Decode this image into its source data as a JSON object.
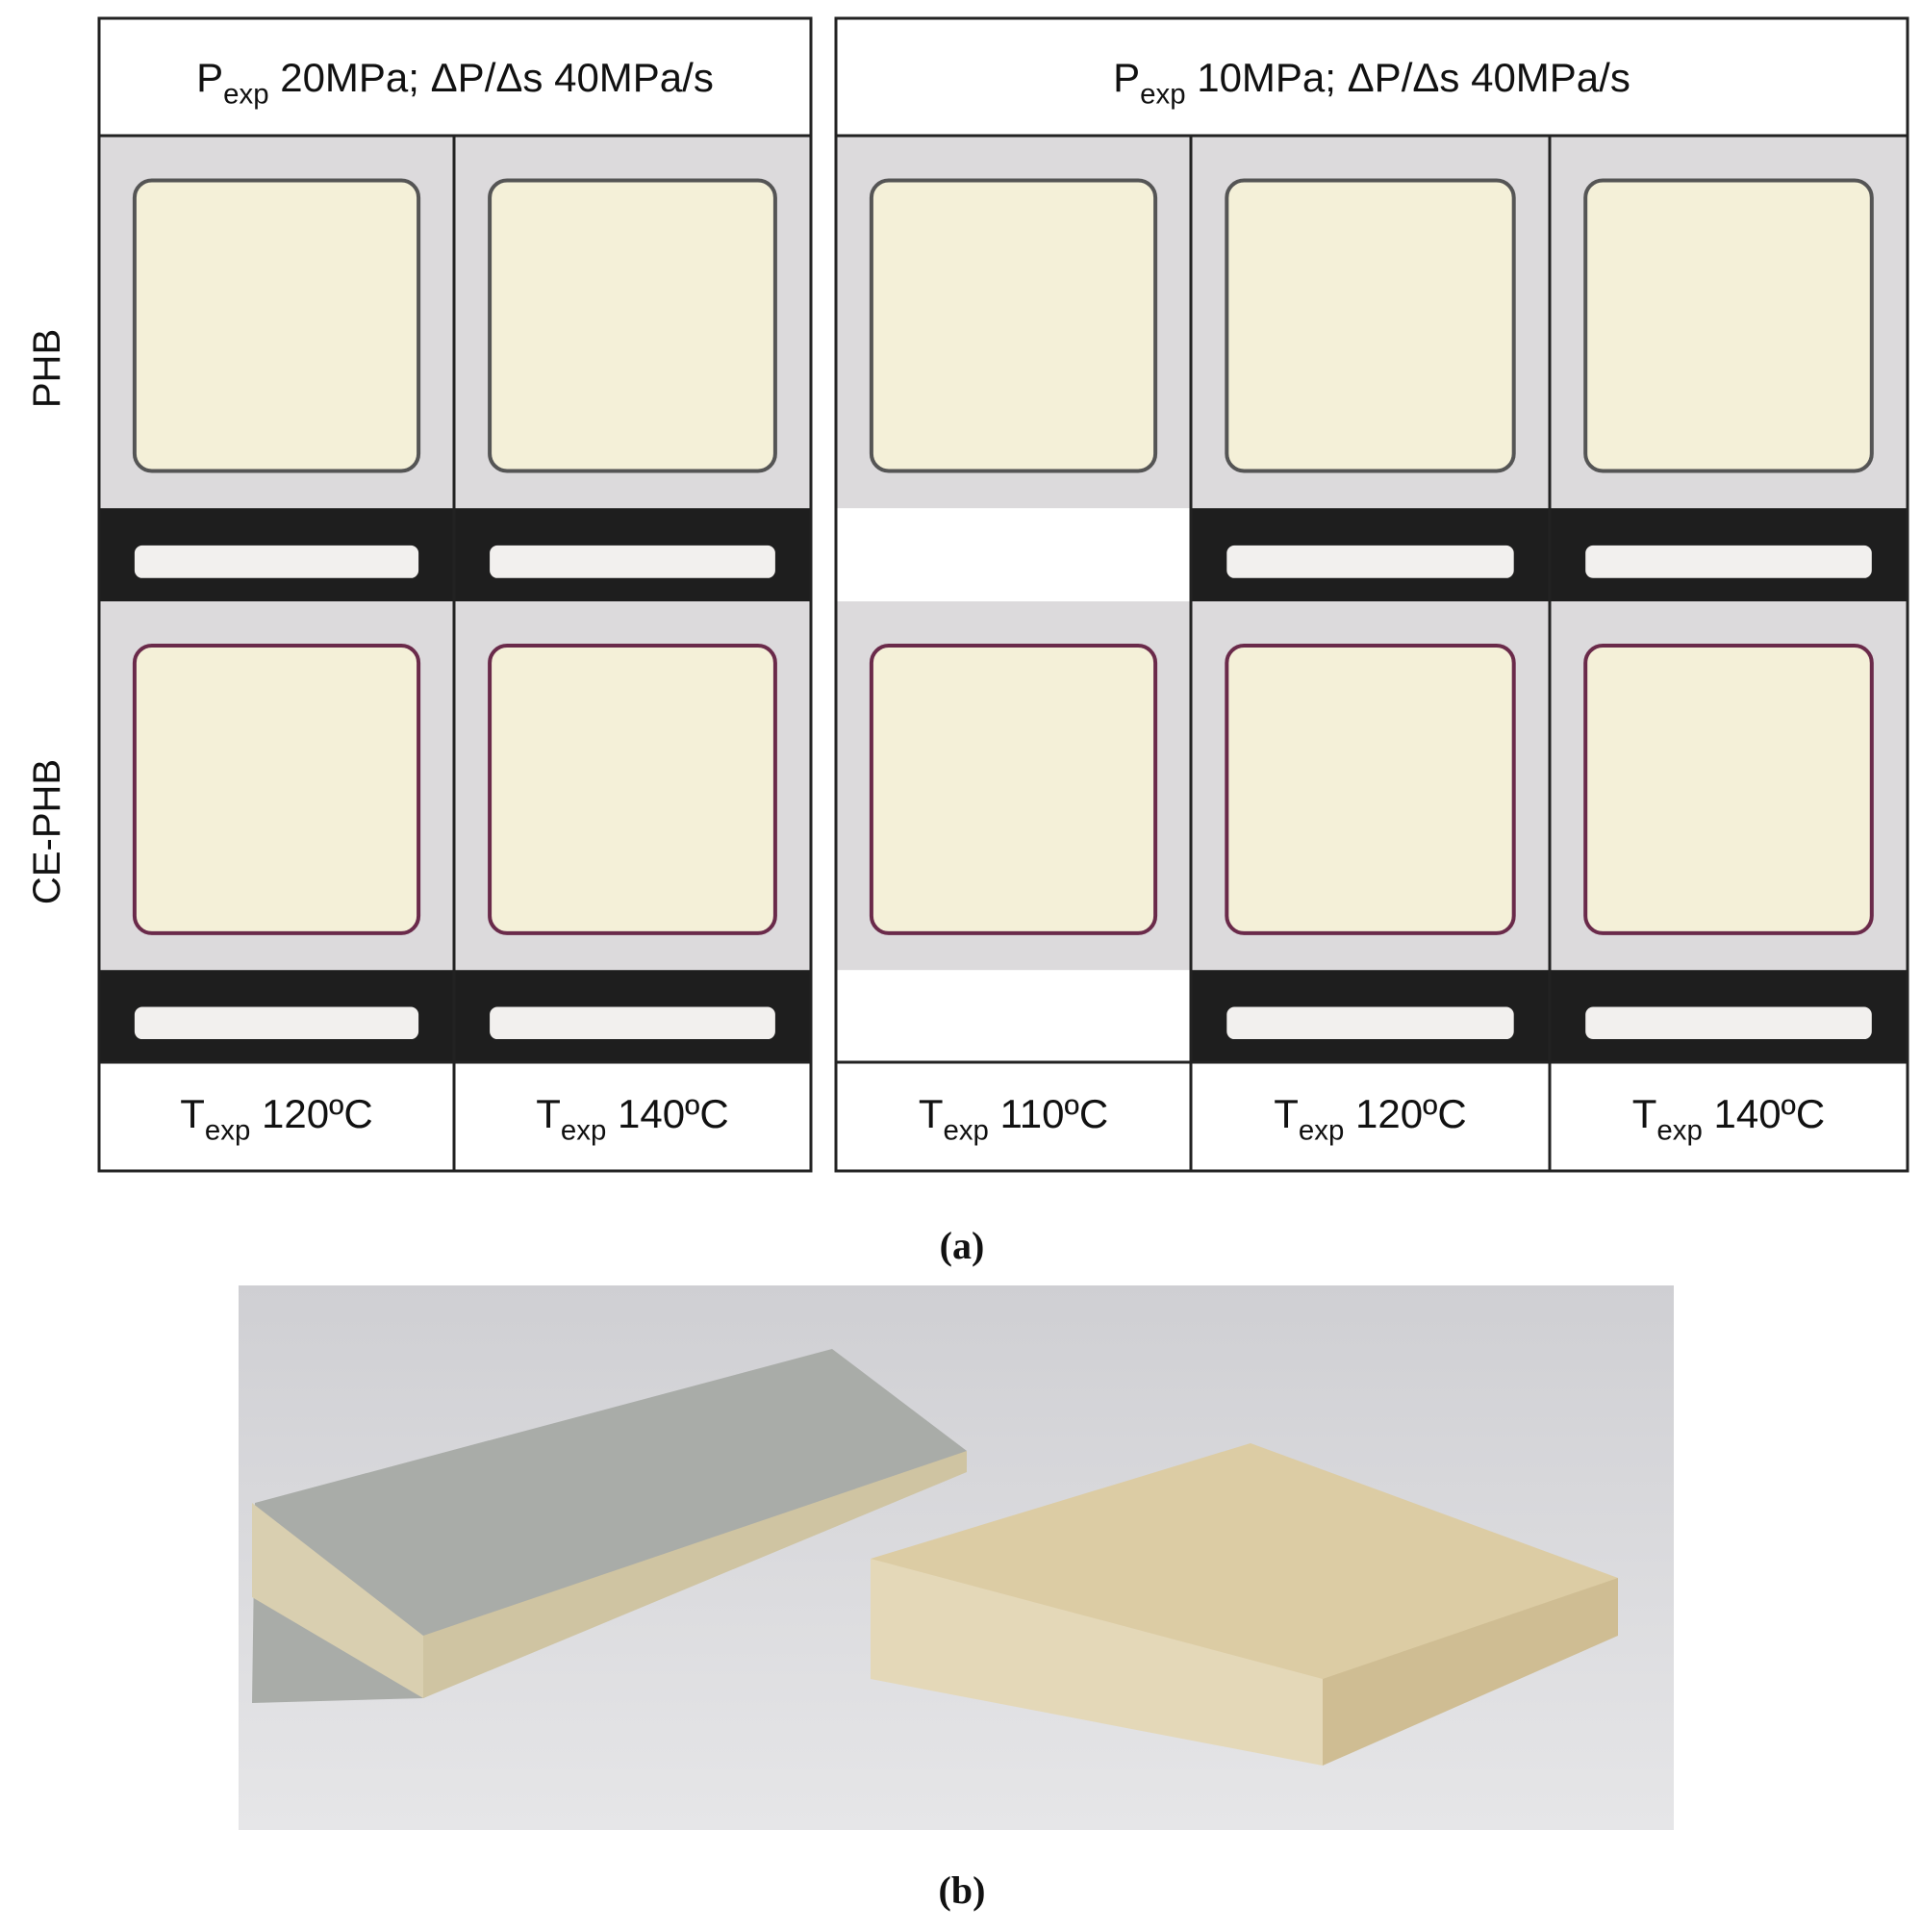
{
  "panel_a": {
    "row_labels": [
      "PHB",
      "CE-PHB"
    ],
    "left": {
      "header": {
        "symbol": "P",
        "subscript": "exp",
        "text": " 20MPa; ΔP/Δs 40MPa/s"
      },
      "columns": [
        {
          "symbol": "T",
          "subscript": "exp",
          "text": " 120ºC"
        },
        {
          "symbol": "T",
          "subscript": "exp",
          "text": " 140ºC"
        }
      ]
    },
    "right": {
      "header": {
        "symbol": "P",
        "subscript": "exp",
        "text": " 10MPa; ΔP/Δs 40MPa/s"
      },
      "columns": [
        {
          "symbol": "T",
          "subscript": "exp",
          "text": " 110ºC"
        },
        {
          "symbol": "T",
          "subscript": "exp",
          "text": " 120ºC"
        },
        {
          "symbol": "T",
          "subscript": "exp",
          "text": " 140ºC"
        }
      ]
    },
    "caption": "(a)"
  },
  "panel_b": {
    "caption": "(b)"
  }
}
